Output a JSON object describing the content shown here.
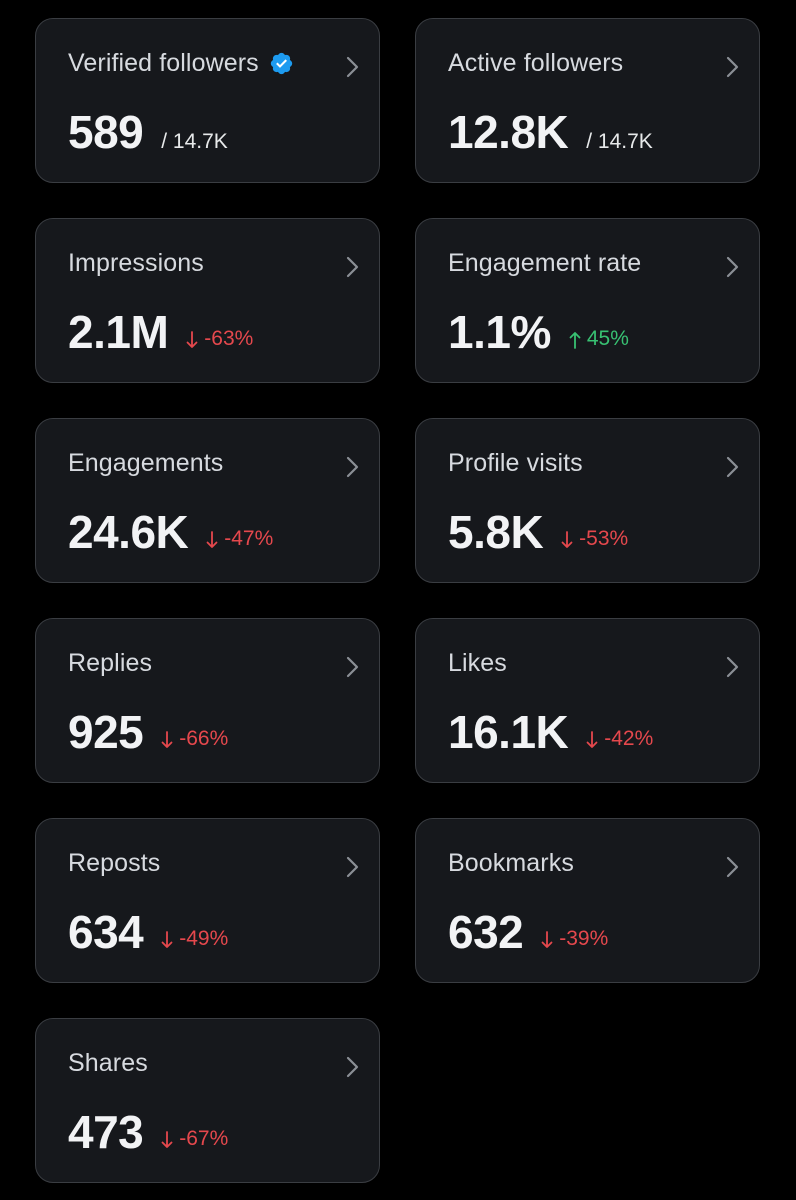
{
  "colors": {
    "background": "#000000",
    "card": "#16181c",
    "card_border": "#3a3d42",
    "verified_badge": "#1d9bf0",
    "negative": "#e5484d",
    "positive": "#38c172"
  },
  "cards": [
    {
      "title": "Verified followers",
      "value": "589",
      "total": "/ 14.7K",
      "icon": "verified-badge-icon"
    },
    {
      "title": "Active followers",
      "value": "12.8K",
      "total": "/ 14.7K"
    },
    {
      "title": "Impressions",
      "value": "2.1M",
      "change": "-63%",
      "direction": "down"
    },
    {
      "title": "Engagement rate",
      "value": "1.1%",
      "change": "45%",
      "direction": "up"
    },
    {
      "title": "Engagements",
      "value": "24.6K",
      "change": "-47%",
      "direction": "down"
    },
    {
      "title": "Profile visits",
      "value": "5.8K",
      "change": "-53%",
      "direction": "down"
    },
    {
      "title": "Replies",
      "value": "925",
      "change": "-66%",
      "direction": "down"
    },
    {
      "title": "Likes",
      "value": "16.1K",
      "change": "-42%",
      "direction": "down"
    },
    {
      "title": "Reposts",
      "value": "634",
      "change": "-49%",
      "direction": "down"
    },
    {
      "title": "Bookmarks",
      "value": "632",
      "change": "-39%",
      "direction": "down"
    },
    {
      "title": "Shares",
      "value": "473",
      "change": "-67%",
      "direction": "down"
    }
  ]
}
